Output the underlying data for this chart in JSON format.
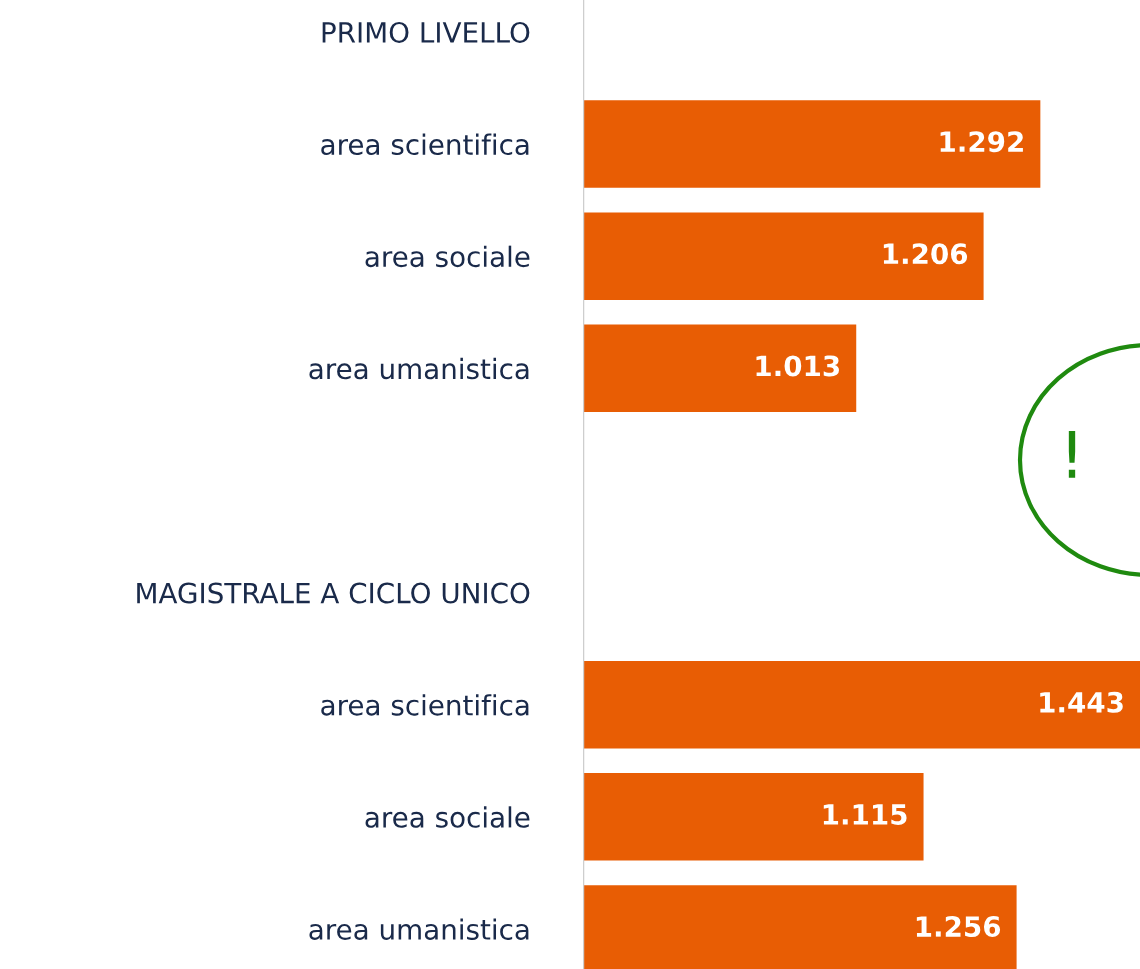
{
  "chart_data": {
    "type": "bar",
    "orientation": "horizontal",
    "categories": [
      "PRIMO LIVELLO",
      "area scientifica",
      "area sociale",
      "area umanistica",
      null,
      "MAGISTRALE A CICLO UNICO",
      "area scientifica",
      "area sociale",
      "area umanistica"
    ],
    "values": [
      null,
      1292,
      1206,
      1013,
      null,
      null,
      1443,
      1115,
      1256
    ],
    "value_labels": [
      null,
      "1.292",
      "1.206",
      "1.013",
      null,
      null,
      "1.443",
      "1.115",
      "1.256"
    ],
    "color": "#e85d04",
    "xlim": [
      600,
      1443
    ],
    "tick_labels": "y",
    "grid": false,
    "legend": false,
    "annotations": [
      "!"
    ]
  }
}
